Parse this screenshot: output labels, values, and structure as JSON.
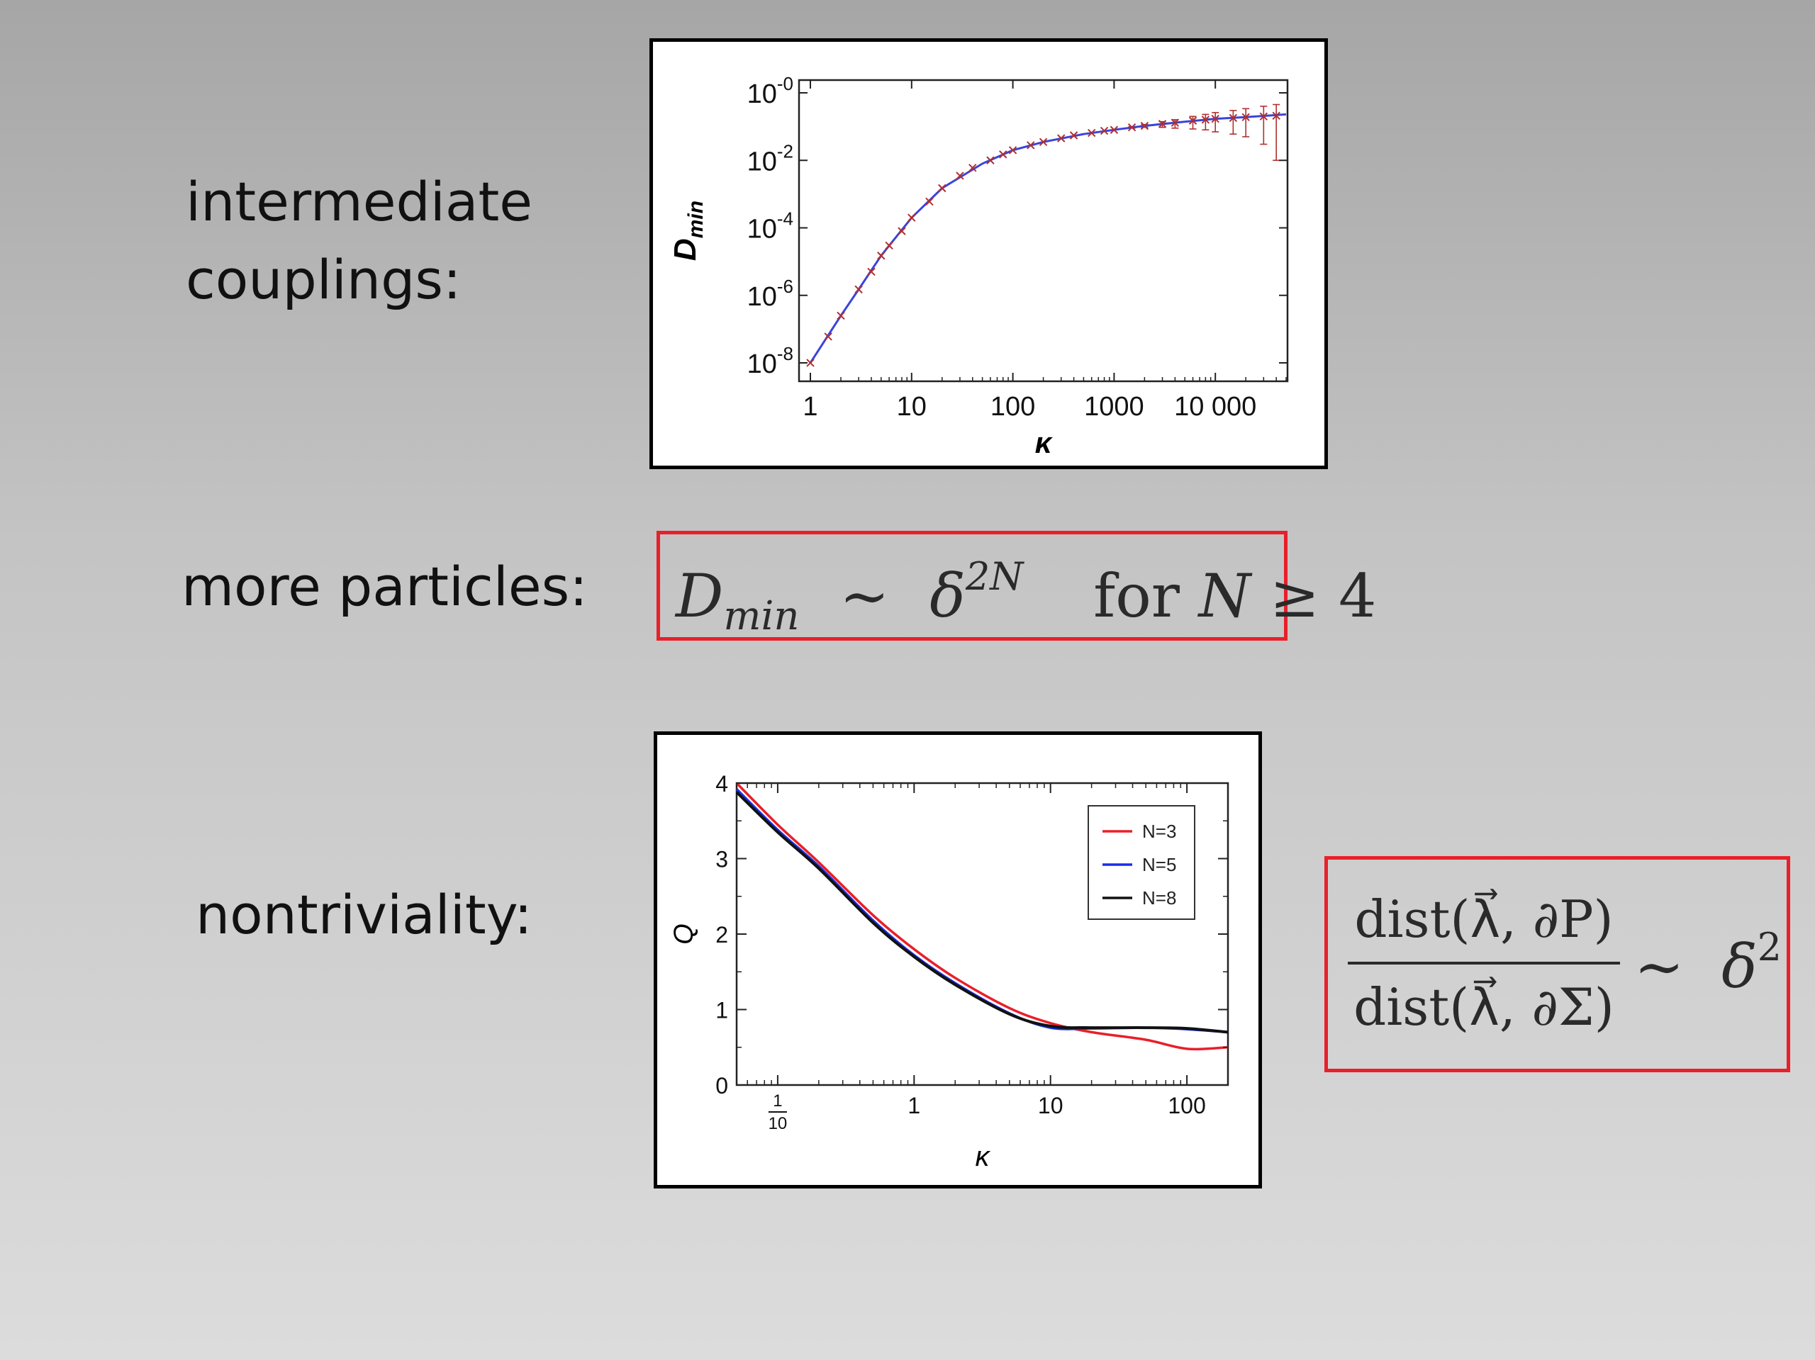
{
  "labels": {
    "intermediate_line1": "intermediate",
    "intermediate_line2": "couplings:",
    "more": "more particles:",
    "nontriviality": "nontriviality:"
  },
  "formula1": {
    "lhs": "D",
    "lhs_sub": "min",
    "sim": "∼",
    "base": "δ",
    "exp": "2N",
    "cond_word": "for",
    "cond_var": "N",
    "cond_rel": "≥",
    "cond_val": "4"
  },
  "formula2": {
    "numerator": "dist(λ⃗, ∂P)",
    "denominator": "dist(λ⃗, ∂Σ)",
    "sim": "∼",
    "base": "δ",
    "exp": "2"
  },
  "colors": {
    "n3": "#e8202a",
    "n5": "#1a2ee8",
    "n8": "#111111",
    "fit": "#3a44d8",
    "points": "#b03030",
    "box": "#e8202a"
  },
  "chart_data": [
    {
      "type": "scatter",
      "ylabel": "D_min",
      "xlabel": "κ",
      "x_scale": "log",
      "y_scale": "log",
      "xlim": [
        1,
        50000
      ],
      "ylim": [
        1e-08,
        1
      ],
      "x_ticks": [
        1,
        10,
        100,
        1000,
        10000
      ],
      "x_tick_labels": [
        "1",
        "10",
        "100",
        "1000",
        "10 000"
      ],
      "y_ticks": [
        -8,
        -6,
        -4,
        -2,
        0
      ],
      "y_tick_labels": [
        "10^-8",
        "10^-6",
        "10^-4",
        "10^-2",
        "10^-0"
      ],
      "series": [
        {
          "style": "points-with-error-bars",
          "x": [
            1,
            1.5,
            2,
            3,
            4,
            5,
            6,
            8,
            10,
            15,
            20,
            30,
            40,
            60,
            80,
            100,
            150,
            200,
            300,
            400,
            600,
            800,
            1000,
            1500,
            2000,
            3000,
            4000,
            6000,
            8000,
            10000,
            15000,
            20000,
            30000,
            40000
          ],
          "y": [
            1e-08,
            6e-08,
            2.5e-07,
            1.5e-06,
            5e-06,
            1.5e-05,
            3e-05,
            8e-05,
            0.0002,
            0.0006,
            0.0015,
            0.0035,
            0.006,
            0.01,
            0.015,
            0.02,
            0.028,
            0.035,
            0.045,
            0.055,
            0.065,
            0.075,
            0.08,
            0.095,
            0.105,
            0.12,
            0.13,
            0.15,
            0.16,
            0.17,
            0.18,
            0.19,
            0.2,
            0.21
          ],
          "err_low": [
            1e-08,
            6e-08,
            2.5e-07,
            1.5e-06,
            5e-06,
            1.5e-05,
            3e-05,
            8e-05,
            0.0002,
            0.0006,
            0.0015,
            0.0035,
            0.006,
            0.01,
            0.015,
            0.02,
            0.028,
            0.035,
            0.045,
            0.055,
            0.065,
            0.075,
            0.08,
            0.09,
            0.095,
            0.095,
            0.09,
            0.085,
            0.08,
            0.07,
            0.06,
            0.05,
            0.03,
            0.01
          ],
          "err_high": [
            1e-08,
            6e-08,
            2.5e-07,
            1.5e-06,
            5e-06,
            1.5e-05,
            3e-05,
            8e-05,
            0.0002,
            0.0006,
            0.0015,
            0.0035,
            0.006,
            0.01,
            0.015,
            0.02,
            0.028,
            0.035,
            0.045,
            0.055,
            0.065,
            0.075,
            0.08,
            0.1,
            0.115,
            0.14,
            0.16,
            0.2,
            0.23,
            0.26,
            0.3,
            0.34,
            0.4,
            0.45
          ]
        },
        {
          "style": "line",
          "x": [
            1,
            2,
            3,
            5,
            10,
            20,
            50,
            100,
            200,
            500,
            1000,
            2000,
            5000,
            10000,
            20000,
            50000
          ],
          "y": [
            1e-08,
            2.5e-07,
            1.5e-06,
            1.5e-05,
            0.0002,
            0.0015,
            0.008,
            0.02,
            0.035,
            0.06,
            0.08,
            0.105,
            0.14,
            0.17,
            0.19,
            0.23
          ]
        }
      ]
    },
    {
      "type": "line",
      "ylabel": "Q",
      "xlabel": "κ",
      "x_scale": "log",
      "xlim": [
        0.05,
        200
      ],
      "ylim": [
        0,
        4
      ],
      "x_ticks": [
        0.1,
        1,
        10,
        100
      ],
      "x_tick_labels": [
        "1/10",
        "1",
        "10",
        "100"
      ],
      "y_ticks": [
        0,
        1,
        2,
        3,
        4
      ],
      "y_tick_labels": [
        "0",
        "1",
        "2",
        "3",
        "4"
      ],
      "legend": "top-right",
      "series": [
        {
          "name": "N=3",
          "x": [
            0.05,
            0.1,
            0.2,
            0.5,
            1,
            2,
            5,
            10,
            20,
            50,
            100,
            200
          ],
          "y": [
            4.0,
            3.45,
            2.95,
            2.25,
            1.8,
            1.42,
            1.02,
            0.82,
            0.7,
            0.6,
            0.48,
            0.5
          ]
        },
        {
          "name": "N=5",
          "x": [
            0.05,
            0.1,
            0.2,
            0.5,
            1,
            2,
            5,
            10,
            20,
            50,
            100,
            200
          ],
          "y": [
            3.92,
            3.38,
            2.9,
            2.18,
            1.72,
            1.35,
            0.95,
            0.76,
            0.75,
            0.76,
            0.74,
            0.7
          ]
        },
        {
          "name": "N=8",
          "x": [
            0.05,
            0.1,
            0.2,
            0.5,
            1,
            2,
            5,
            10,
            20,
            50,
            100,
            200
          ],
          "y": [
            3.88,
            3.35,
            2.87,
            2.15,
            1.7,
            1.33,
            0.94,
            0.78,
            0.76,
            0.76,
            0.75,
            0.7
          ]
        }
      ]
    }
  ]
}
